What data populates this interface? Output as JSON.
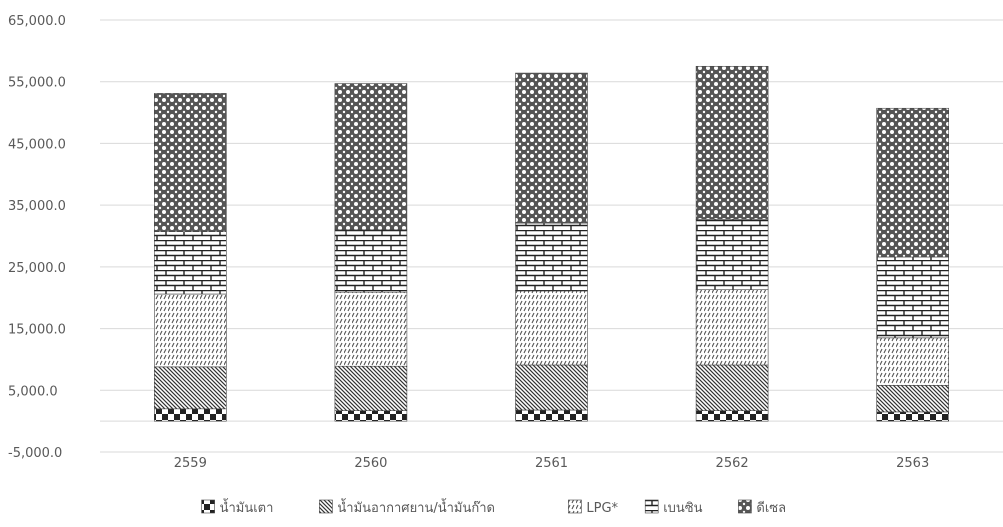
{
  "chart_data": {
    "type": "bar",
    "stacked": true,
    "categories": [
      "2559",
      "2560",
      "2561",
      "2562",
      "2563"
    ],
    "series": [
      {
        "name": "น้ำมันเตา",
        "values": [
          2000,
          1700,
          1800,
          1700,
          1500
        ],
        "pattern": "checker"
      },
      {
        "name": "น้ำมันอากาศยาน/น้ำมันก๊าด",
        "values": [
          6800,
          7200,
          7300,
          7400,
          4300
        ],
        "pattern": "diagonal-dense"
      },
      {
        "name": "LPG*",
        "values": [
          11800,
          12000,
          12000,
          12200,
          7700
        ],
        "pattern": "dashed-diagonal"
      },
      {
        "name": "เบนซิน",
        "values": [
          10100,
          10100,
          11000,
          11400,
          13100
        ],
        "pattern": "brick"
      },
      {
        "name": "ดีเซล",
        "values": [
          22400,
          23700,
          24300,
          24800,
          24100
        ],
        "pattern": "lattice"
      }
    ],
    "ylim": [
      -5000,
      65000
    ],
    "yticks": [
      -5000,
      5000,
      15000,
      25000,
      35000,
      45000,
      55000,
      65000
    ],
    "ytick_labels": [
      "-5,000.0",
      "5,000.0",
      "15,000.0",
      "25,000.0",
      "35,000.0",
      "45,000.0",
      "55,000.0",
      "65,000.0"
    ],
    "grid": true,
    "legend": "bottom"
  }
}
